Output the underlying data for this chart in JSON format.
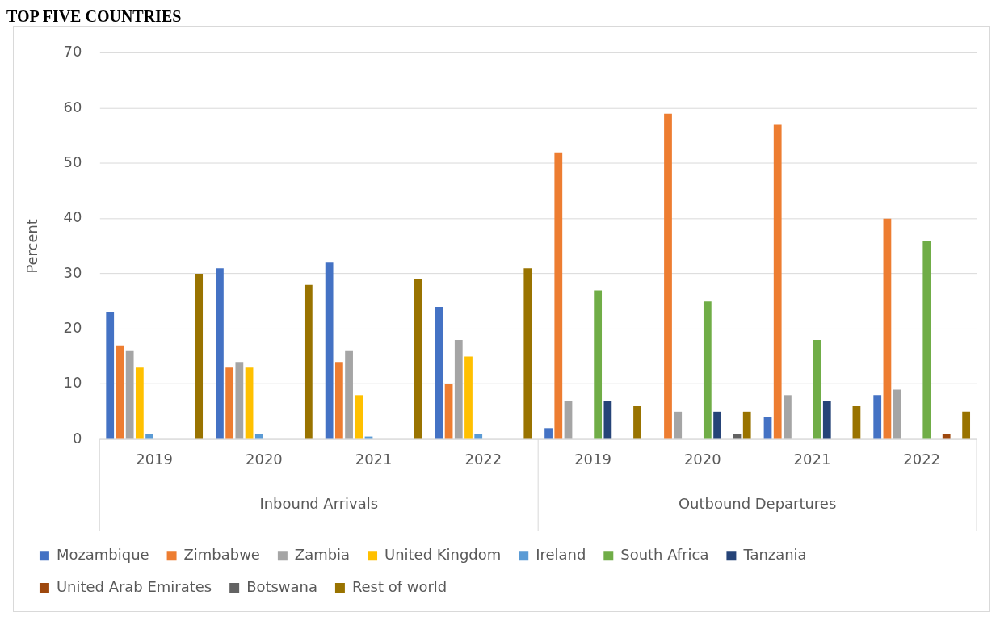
{
  "chart_data": {
    "type": "bar",
    "title": "TOP FIVE COUNTRIES",
    "ylabel": "Percent",
    "categories": [
      "2019",
      "2020",
      "2021",
      "2022",
      "2019",
      "2020",
      "2021",
      "2022"
    ],
    "annotations": [
      "Inbound Arrivals",
      "Outbound Departures"
    ],
    "series": [
      {
        "name": "Mozambique",
        "color": "#4472c4",
        "values": [
          23,
          31,
          32,
          24,
          2,
          null,
          4,
          8
        ]
      },
      {
        "name": "Zimbabwe",
        "color": "#ed7d31",
        "values": [
          17,
          13,
          14,
          10,
          52,
          59,
          57,
          40
        ]
      },
      {
        "name": "Zambia",
        "color": "#a5a5a5",
        "values": [
          16,
          14,
          16,
          18,
          7,
          5,
          8,
          9
        ]
      },
      {
        "name": "United Kingdom",
        "color": "#ffc000",
        "values": [
          13,
          13,
          8,
          15,
          null,
          null,
          null,
          null
        ]
      },
      {
        "name": "Ireland",
        "color": "#5b9bd5",
        "values": [
          1,
          1,
          0.5,
          1,
          null,
          null,
          null,
          null
        ]
      },
      {
        "name": "South Africa",
        "color": "#70ad47",
        "values": [
          null,
          null,
          null,
          null,
          27,
          25,
          18,
          36
        ]
      },
      {
        "name": "Tanzania",
        "color": "#264478",
        "values": [
          null,
          null,
          null,
          null,
          7,
          5,
          7,
          null
        ]
      },
      {
        "name": "United Arab Emirates",
        "color": "#9e480e",
        "values": [
          null,
          null,
          null,
          null,
          null,
          null,
          null,
          1
        ]
      },
      {
        "name": "Botswana",
        "color": "#636363",
        "values": [
          null,
          null,
          null,
          null,
          null,
          1,
          null,
          null
        ]
      },
      {
        "name": "Rest of world",
        "color": "#997300",
        "values": [
          30,
          28,
          29,
          31,
          6,
          5,
          6,
          5
        ]
      }
    ],
    "ylim": [
      0,
      70
    ],
    "yticks": [
      0,
      10,
      20,
      30,
      40,
      50,
      60,
      70
    ],
    "grid": "y",
    "legend": "bottom"
  }
}
